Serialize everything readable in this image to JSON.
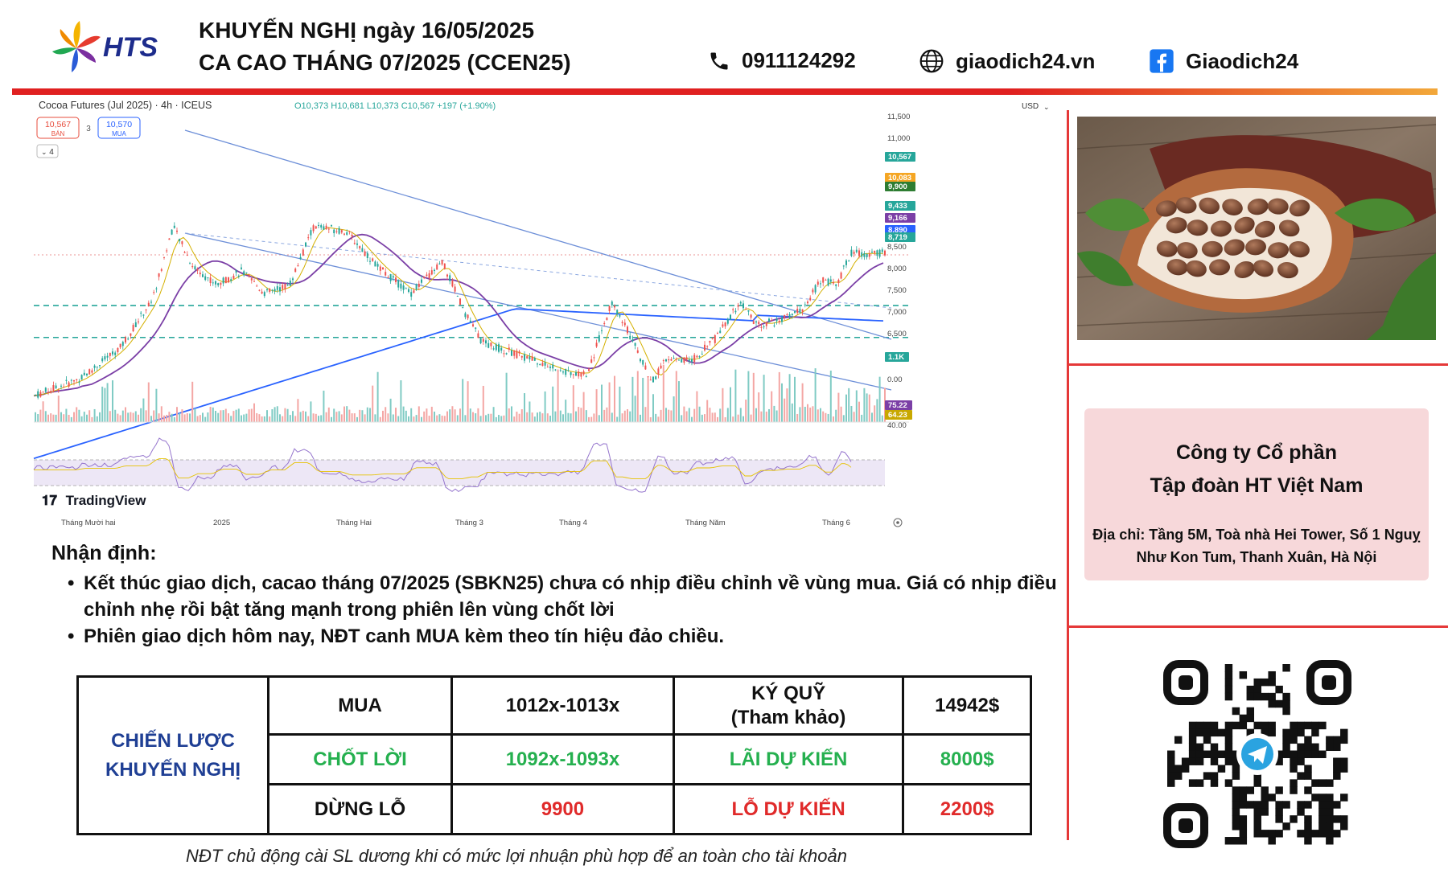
{
  "header": {
    "logo_text": "HTS",
    "title_line1": "KHUYẾN NGHỊ ngày 16/05/2025",
    "title_line2": "CA CAO THÁNG 07/2025 (CCEN25)",
    "phone": "0911124292",
    "website": "giaodich24.vn",
    "facebook": "Giaodich24"
  },
  "chart": {
    "symbol_line": "Cocoa Futures (Jul 2025) · 4h · ICEUS",
    "ohlc": "O10,373 H10,681 L10,373 C10,567 +197 (+1.90%)",
    "sell_price": "10,567",
    "sell_label": "BÁN",
    "spread": "3",
    "buy_price": "10,570",
    "buy_label": "MUA",
    "indicator_count": "4",
    "currency": "USD",
    "brand": "TradingView",
    "price_ticks": [
      "11,500",
      "11,000",
      "8,500",
      "8,000",
      "7,500",
      "7,000",
      "6,500",
      "0.00",
      "40.00"
    ],
    "price_labels": [
      {
        "text": "10,567",
        "color": "#26a69a"
      },
      {
        "text": "10,083",
        "color": "#f5a623"
      },
      {
        "text": "9,900",
        "color": "#2e7d32"
      },
      {
        "text": "9,433",
        "color": "#26a69a"
      },
      {
        "text": "9,166",
        "color": "#7b3fa6"
      },
      {
        "text": "8,890",
        "color": "#2962ff"
      },
      {
        "text": "8,719",
        "color": "#26a69a"
      }
    ],
    "volume_label": "1.1K",
    "rsi_labels": [
      {
        "text": "75.22",
        "color": "#7b3fa6"
      },
      {
        "text": "64.23",
        "color": "#c8a800"
      }
    ],
    "x_ticks": [
      "Tháng Mười hai",
      "2025",
      "Tháng Hai",
      "Tháng 3",
      "Tháng 4",
      "Tháng Năm",
      "Tháng 6"
    ]
  },
  "company": {
    "name_line1": "Công ty Cổ phần",
    "name_line2": "Tập đoàn HT Việt Nam",
    "address": "Địa chỉ: Tầng 5M, Toà nhà Hei Tower, Số 1 Nguỵ Như Kon Tum, Thanh Xuân, Hà Nội"
  },
  "notes": {
    "title": "Nhận định:",
    "items": [
      "Kết thúc giao dịch, cacao tháng 07/2025 (SBKN25) chưa có nhịp điều chỉnh về vùng mua. Giá có nhịp điều chỉnh nhẹ rồi bật tăng mạnh trong phiên lên vùng chốt lời",
      "Phiên giao dịch hôm nay, NĐT canh MUA kèm theo tín hiệu đảo chiều."
    ]
  },
  "strategy": {
    "label_line1": "CHIẾN LƯỢC",
    "label_line2": "KHUYẾN NGHỊ",
    "buy_label": "MUA",
    "buy_value": "1012x-1013x",
    "margin_label_line1": "KÝ QUỸ",
    "margin_label_line2": "(Tham khảo)",
    "margin_value": "14942$",
    "tp_label": "CHỐT LỜI",
    "tp_value": "1092x-1093x",
    "profit_label": "LÃI DỰ KIẾN",
    "profit_value": "8000$",
    "sl_label": "DỪNG LỖ",
    "sl_value": "9900",
    "loss_label": "LỖ DỰ KIẾN",
    "loss_value": "2200$"
  },
  "footnote": "NĐT chủ động cài SL dương khi có mức lợi nhuận phù hợp để an toàn cho tài khoản"
}
